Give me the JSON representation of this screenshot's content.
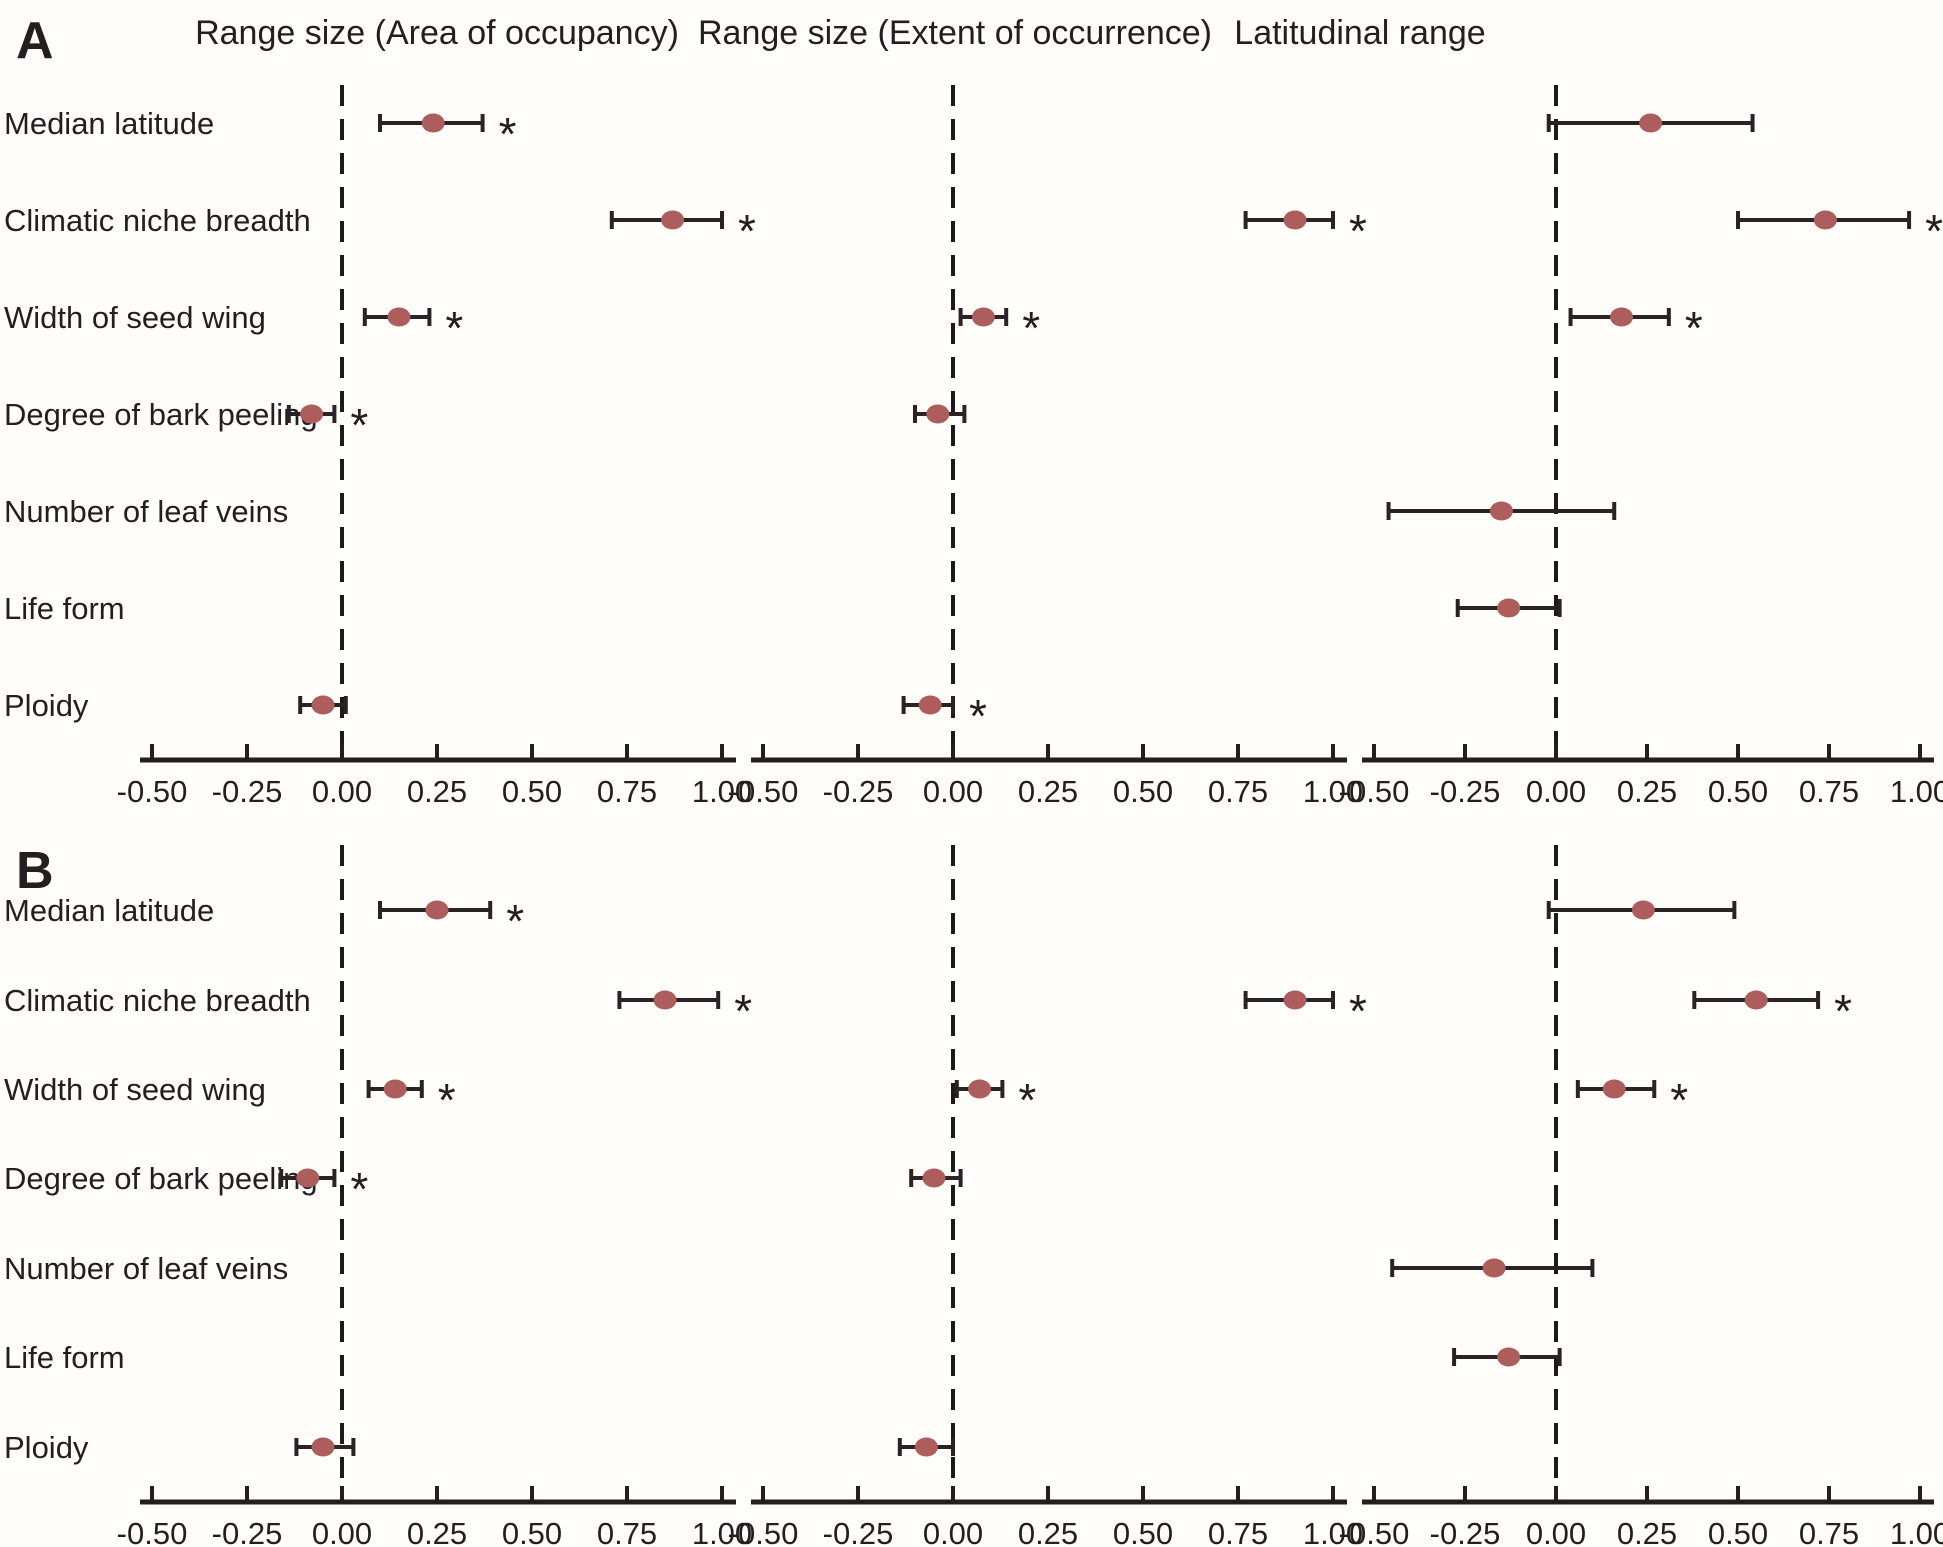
{
  "figure": {
    "background": "#fffefb",
    "significance_symbol": "*"
  },
  "chart_data": {
    "type": "forest",
    "title": "",
    "column_titles": [
      "Range size (Area of occupancy)",
      "Range size (Extent of occurrence)",
      "Latitudinal range"
    ],
    "categories": [
      "Median latitude",
      "Climatic niche breadth",
      "Width of seed wing",
      "Degree of bark peeling",
      "Number of leaf veins",
      "Life form",
      "Ploidy"
    ],
    "x_ticks": [
      -0.5,
      -0.25,
      0,
      0.25,
      0.5,
      0.75,
      1
    ],
    "x_tick_labels": [
      "-0.50",
      "-0.25",
      "0.00",
      "0.25",
      "0.50",
      "0.75",
      "1.00"
    ],
    "xlim": [
      -0.5,
      1.0
    ],
    "zero_reference_line": 0,
    "grid": false,
    "legend": "none",
    "colors": {
      "marker": "#ad5d5b",
      "line": "#2b2224",
      "axis": "#231f20",
      "text": "#231f20"
    },
    "panels": [
      {
        "label": "A",
        "columns": [
          {
            "title": "Range size (Area of occupancy)",
            "points": [
              {
                "category": "Median latitude",
                "estimate": 0.24,
                "ci_low": 0.1,
                "ci_high": 0.37,
                "significant": true
              },
              {
                "category": "Climatic niche breadth",
                "estimate": 0.87,
                "ci_low": 0.71,
                "ci_high": 1.0,
                "significant": true
              },
              {
                "category": "Width of seed wing",
                "estimate": 0.15,
                "ci_low": 0.06,
                "ci_high": 0.23,
                "significant": true
              },
              {
                "category": "Degree of bark peeling",
                "estimate": -0.08,
                "ci_low": -0.14,
                "ci_high": -0.02,
                "significant": true
              },
              {
                "category": "Ploidy",
                "estimate": -0.05,
                "ci_low": -0.11,
                "ci_high": 0.01,
                "significant": false
              }
            ]
          },
          {
            "title": "Range size (Extent of occurrence)",
            "points": [
              {
                "category": "Climatic niche breadth",
                "estimate": 0.9,
                "ci_low": 0.77,
                "ci_high": 1.0,
                "significant": true
              },
              {
                "category": "Width of seed wing",
                "estimate": 0.08,
                "ci_low": 0.02,
                "ci_high": 0.14,
                "significant": true
              },
              {
                "category": "Degree of bark peeling",
                "estimate": -0.04,
                "ci_low": -0.1,
                "ci_high": 0.03,
                "significant": false
              },
              {
                "category": "Ploidy",
                "estimate": -0.06,
                "ci_low": -0.13,
                "ci_high": 0.0,
                "significant": true
              }
            ]
          },
          {
            "title": "Latitudinal range",
            "points": [
              {
                "category": "Median latitude",
                "estimate": 0.26,
                "ci_low": -0.02,
                "ci_high": 0.54,
                "significant": false
              },
              {
                "category": "Climatic niche breadth",
                "estimate": 0.74,
                "ci_low": 0.5,
                "ci_high": 0.97,
                "significant": true
              },
              {
                "category": "Width of seed wing",
                "estimate": 0.18,
                "ci_low": 0.04,
                "ci_high": 0.31,
                "significant": true
              },
              {
                "category": "Number of leaf veins",
                "estimate": -0.15,
                "ci_low": -0.46,
                "ci_high": 0.16,
                "significant": false
              },
              {
                "category": "Life form",
                "estimate": -0.13,
                "ci_low": -0.27,
                "ci_high": 0.01,
                "significant": false
              }
            ]
          }
        ]
      },
      {
        "label": "B",
        "columns": [
          {
            "title": "Range size (Area of occupancy)",
            "points": [
              {
                "category": "Median latitude",
                "estimate": 0.25,
                "ci_low": 0.1,
                "ci_high": 0.39,
                "significant": true
              },
              {
                "category": "Climatic niche breadth",
                "estimate": 0.85,
                "ci_low": 0.73,
                "ci_high": 0.99,
                "significant": true
              },
              {
                "category": "Width of seed wing",
                "estimate": 0.14,
                "ci_low": 0.07,
                "ci_high": 0.21,
                "significant": true
              },
              {
                "category": "Degree of bark peeling",
                "estimate": -0.09,
                "ci_low": -0.16,
                "ci_high": -0.02,
                "significant": true
              },
              {
                "category": "Ploidy",
                "estimate": -0.05,
                "ci_low": -0.12,
                "ci_high": 0.03,
                "significant": false
              }
            ]
          },
          {
            "title": "Range size (Extent of occurrence)",
            "points": [
              {
                "category": "Climatic niche breadth",
                "estimate": 0.9,
                "ci_low": 0.77,
                "ci_high": 1.0,
                "significant": true
              },
              {
                "category": "Width of seed wing",
                "estimate": 0.07,
                "ci_low": 0.01,
                "ci_high": 0.13,
                "significant": true
              },
              {
                "category": "Degree of bark peeling",
                "estimate": -0.05,
                "ci_low": -0.11,
                "ci_high": 0.02,
                "significant": false
              },
              {
                "category": "Ploidy",
                "estimate": -0.07,
                "ci_low": -0.14,
                "ci_high": 0.0,
                "significant": false
              }
            ]
          },
          {
            "title": "Latitudinal range",
            "points": [
              {
                "category": "Median latitude",
                "estimate": 0.24,
                "ci_low": -0.02,
                "ci_high": 0.49,
                "significant": false
              },
              {
                "category": "Climatic niche breadth",
                "estimate": 0.55,
                "ci_low": 0.38,
                "ci_high": 0.72,
                "significant": true
              },
              {
                "category": "Width of seed wing",
                "estimate": 0.16,
                "ci_low": 0.06,
                "ci_high": 0.27,
                "significant": true
              },
              {
                "category": "Number of leaf veins",
                "estimate": -0.17,
                "ci_low": -0.45,
                "ci_high": 0.1,
                "significant": false
              },
              {
                "category": "Life form",
                "estimate": -0.13,
                "ci_low": -0.28,
                "ci_high": 0.01,
                "significant": false
              }
            ]
          }
        ]
      }
    ]
  }
}
